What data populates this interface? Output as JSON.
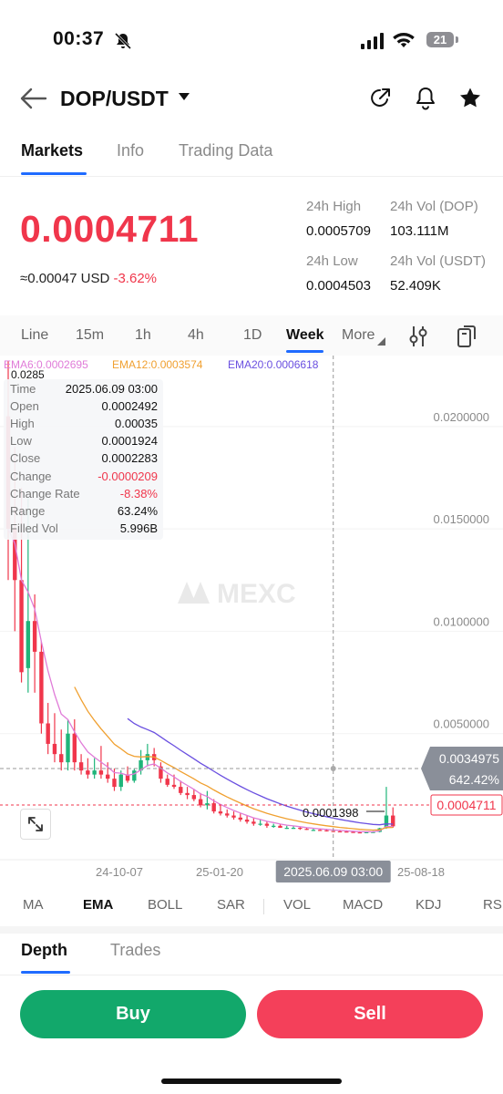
{
  "status_bar": {
    "time": "00:37",
    "battery": "21"
  },
  "header": {
    "pair": "DOP/USDT"
  },
  "tabs": [
    "Markets",
    "Info",
    "Trading Data"
  ],
  "ticker": {
    "last_price": "0.0004711",
    "usd_value": "≈0.00047 USD",
    "change_pct": "-3.62%",
    "high_label": "24h High",
    "high_value": "0.0005709",
    "vol_base_label": "24h Vol (DOP)",
    "vol_base_value": "103.111M",
    "low_label": "24h Low",
    "low_value": "0.0004503",
    "vol_quote_label": "24h Vol  (USDT)",
    "vol_quote_value": "52.409K"
  },
  "periods": [
    "Line",
    "15m",
    "1h",
    "4h",
    "1D",
    "Week",
    "More"
  ],
  "ema_legend": {
    "ema6": "EMA6:0.0002695",
    "ema12": "EMA12:0.0003574",
    "ema20": "EMA20:0.0006618"
  },
  "tooltip": {
    "rows": [
      {
        "label": "Time",
        "value": "2025.06.09 03:00"
      },
      {
        "label": "Open",
        "value": "0.0002492"
      },
      {
        "label": "High",
        "value": "0.00035"
      },
      {
        "label": "Low",
        "value": "0.0001924"
      },
      {
        "label": "Close",
        "value": "0.0002283"
      },
      {
        "label": "Change",
        "value": "-0.0000209"
      },
      {
        "label": "Change Rate",
        "value": "-8.38%"
      },
      {
        "label": "Range",
        "value": "63.24%"
      },
      {
        "label": "Filled Vol",
        "value": "5.996B"
      }
    ]
  },
  "chart": {
    "watermark": "MEXC",
    "y_ticks": [
      "0.0200000",
      "0.0150000",
      "0.0100000",
      "0.0050000"
    ],
    "x_ticks": [
      "24-10-07",
      "25-01-20",
      "25-08-18"
    ],
    "crosshair_price": "0.0034975",
    "crosshair_pct": "642.42%",
    "crosshair_time": "2025.06.09 03:00",
    "last_price_tag": "0.0004711",
    "min_label": "0.0001398",
    "top_partial": "0.0285",
    "colors": {
      "up": "#1fb57a",
      "down": "#f0364b",
      "ema6": "#e07bd8",
      "ema12": "#f0a030",
      "ema20": "#6a4fe0"
    }
  },
  "chart_data": {
    "type": "candlestick",
    "interval": "Week",
    "ylim": [
      0,
      0.0232
    ],
    "x_ticks": [
      "24-10-07",
      "25-01-20",
      "25-08-18"
    ],
    "y_ticks": [
      0.02,
      0.015,
      0.01,
      0.005
    ],
    "candles": [
      {
        "o": 0.0205,
        "h": 0.0232,
        "l": 0.0125,
        "c": 0.015
      },
      {
        "o": 0.015,
        "h": 0.019,
        "l": 0.01,
        "c": 0.0125
      },
      {
        "o": 0.0125,
        "h": 0.017,
        "l": 0.0075,
        "c": 0.008
      },
      {
        "o": 0.0082,
        "h": 0.0165,
        "l": 0.007,
        "c": 0.0105
      },
      {
        "o": 0.0105,
        "h": 0.0118,
        "l": 0.007,
        "c": 0.009
      },
      {
        "o": 0.009,
        "h": 0.0095,
        "l": 0.005,
        "c": 0.0055
      },
      {
        "o": 0.0055,
        "h": 0.0065,
        "l": 0.004,
        "c": 0.0045
      },
      {
        "o": 0.0045,
        "h": 0.006,
        "l": 0.0036,
        "c": 0.004
      },
      {
        "o": 0.004,
        "h": 0.0052,
        "l": 0.0032,
        "c": 0.0036
      },
      {
        "o": 0.0036,
        "h": 0.0057,
        "l": 0.0032,
        "c": 0.005
      },
      {
        "o": 0.005,
        "h": 0.0057,
        "l": 0.0032,
        "c": 0.0036
      },
      {
        "o": 0.0036,
        "h": 0.004,
        "l": 0.003,
        "c": 0.0032
      },
      {
        "o": 0.0032,
        "h": 0.0038,
        "l": 0.0028,
        "c": 0.003
      },
      {
        "o": 0.003,
        "h": 0.0038,
        "l": 0.0028,
        "c": 0.0032
      },
      {
        "o": 0.0032,
        "h": 0.0044,
        "l": 0.0028,
        "c": 0.003
      },
      {
        "o": 0.003,
        "h": 0.0036,
        "l": 0.0026,
        "c": 0.0028
      },
      {
        "o": 0.0028,
        "h": 0.0033,
        "l": 0.0022,
        "c": 0.0024
      },
      {
        "o": 0.0024,
        "h": 0.0032,
        "l": 0.0022,
        "c": 0.003
      },
      {
        "o": 0.003,
        "h": 0.0034,
        "l": 0.0026,
        "c": 0.0027
      },
      {
        "o": 0.0027,
        "h": 0.0033,
        "l": 0.0026,
        "c": 0.0032
      },
      {
        "o": 0.0032,
        "h": 0.0042,
        "l": 0.003,
        "c": 0.0037
      },
      {
        "o": 0.0037,
        "h": 0.0045,
        "l": 0.0034,
        "c": 0.004
      },
      {
        "o": 0.004,
        "h": 0.0043,
        "l": 0.0034,
        "c": 0.0037
      },
      {
        "o": 0.0034,
        "h": 0.0036,
        "l": 0.0026,
        "c": 0.0028
      },
      {
        "o": 0.0028,
        "h": 0.003,
        "l": 0.0024,
        "c": 0.0025
      },
      {
        "o": 0.0025,
        "h": 0.003,
        "l": 0.0023,
        "c": 0.0024
      },
      {
        "o": 0.0024,
        "h": 0.0027,
        "l": 0.002,
        "c": 0.0021
      },
      {
        "o": 0.0021,
        "h": 0.0024,
        "l": 0.0018,
        "c": 0.002
      },
      {
        "o": 0.002,
        "h": 0.0023,
        "l": 0.0017,
        "c": 0.0018
      },
      {
        "o": 0.0018,
        "h": 0.0021,
        "l": 0.0014,
        "c": 0.0015
      },
      {
        "o": 0.0015,
        "h": 0.0022,
        "l": 0.0013,
        "c": 0.0016
      },
      {
        "o": 0.0016,
        "h": 0.0018,
        "l": 0.0011,
        "c": 0.0012
      },
      {
        "o": 0.0012,
        "h": 0.0015,
        "l": 0.001,
        "c": 0.0011
      },
      {
        "o": 0.0011,
        "h": 0.0013,
        "l": 0.0009,
        "c": 0.001
      },
      {
        "o": 0.001,
        "h": 0.0012,
        "l": 0.0008,
        "c": 0.0009
      },
      {
        "o": 0.0009,
        "h": 0.0011,
        "l": 0.0007,
        "c": 0.0008
      },
      {
        "o": 0.0008,
        "h": 0.001,
        "l": 0.0006,
        "c": 0.0007
      },
      {
        "o": 0.0007,
        "h": 0.0009,
        "l": 0.0005,
        "c": 0.0006
      },
      {
        "o": 0.0006,
        "h": 0.0008,
        "l": 0.0005,
        "c": 0.0006
      },
      {
        "o": 0.0006,
        "h": 0.0007,
        "l": 0.0004,
        "c": 0.0005
      },
      {
        "o": 0.0005,
        "h": 0.0006,
        "l": 0.0004,
        "c": 0.0005
      },
      {
        "o": 0.0005,
        "h": 0.0006,
        "l": 0.0004,
        "c": 0.0004
      },
      {
        "o": 0.0004,
        "h": 0.0005,
        "l": 0.00035,
        "c": 0.0004
      },
      {
        "o": 0.0004,
        "h": 0.0005,
        "l": 0.00035,
        "c": 0.0004
      },
      {
        "o": 0.0004,
        "h": 0.00045,
        "l": 0.0003,
        "c": 0.00035
      },
      {
        "o": 0.00035,
        "h": 0.0004,
        "l": 0.0003,
        "c": 0.0003
      },
      {
        "o": 0.0003,
        "h": 0.00035,
        "l": 0.00025,
        "c": 0.0003
      },
      {
        "o": 0.0003,
        "h": 0.00035,
        "l": 0.00025,
        "c": 0.00028
      },
      {
        "o": 0.00028,
        "h": 0.00035,
        "l": 0.00022,
        "c": 0.00025
      },
      {
        "o": 0.0002492,
        "h": 0.00035,
        "l": 0.0001924,
        "c": 0.0002283
      },
      {
        "o": 0.00023,
        "h": 0.0003,
        "l": 0.0002,
        "c": 0.00022
      },
      {
        "o": 0.00022,
        "h": 0.00028,
        "l": 0.00018,
        "c": 0.0002
      },
      {
        "o": 0.0002,
        "h": 0.00025,
        "l": 0.00016,
        "c": 0.00018
      },
      {
        "o": 0.00018,
        "h": 0.00023,
        "l": 0.0001398,
        "c": 0.00017
      },
      {
        "o": 0.00017,
        "h": 0.00022,
        "l": 0.00015,
        "c": 0.00019
      },
      {
        "o": 0.00019,
        "h": 0.00024,
        "l": 0.00016,
        "c": 0.0002
      },
      {
        "o": 0.0002,
        "h": 0.0004,
        "l": 0.00018,
        "c": 0.00038
      },
      {
        "o": 0.00038,
        "h": 0.0024,
        "l": 0.00035,
        "c": 0.001
      },
      {
        "o": 0.001,
        "h": 0.0014,
        "l": 0.0004,
        "c": 0.0004711
      }
    ],
    "crosshair_index": 49
  },
  "indicators": [
    "MA",
    "EMA",
    "BOLL",
    "SAR",
    "VOL",
    "MACD",
    "KDJ",
    "RS"
  ],
  "lower_tabs": [
    "Depth",
    "Trades"
  ],
  "actions": {
    "buy": "Buy",
    "sell": "Sell"
  }
}
